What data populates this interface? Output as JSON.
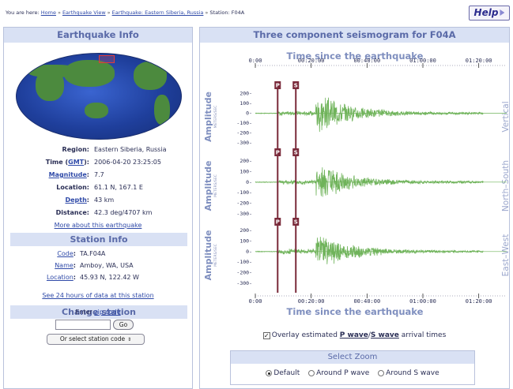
{
  "breadcrumb": {
    "prefix": "You are here:",
    "home": "Home",
    "earthquake_view": "Earthquake View",
    "event": "Earthquake: Eastern Siberia, Russia",
    "station": "Station: F04A"
  },
  "help": {
    "label": "Help"
  },
  "left": {
    "title": "Earthquake Info",
    "region_label": "Region:",
    "region_value": "Eastern Siberia, Russia",
    "time_label": "Time",
    "time_gmt": "GMT",
    "time_value": "2006-04-20 23:25:05",
    "magnitude_label": "Magnitude",
    "magnitude_value": "7.7",
    "location_label": "Location:",
    "location_value": "61.1 N, 167.1 E",
    "depth_label": "Depth",
    "depth_value": "43 km",
    "distance_label": "Distance:",
    "distance_value": "42.3 deg/4707 km",
    "more_link": "More about this earthquake",
    "station_title": "Station Info",
    "code_label": "Code",
    "code_value": "TA.F04A",
    "name_label": "Name",
    "name_value": "Amboy, WA, USA",
    "st_location_label": "Location",
    "st_location_value": "45.93 N, 122.42 W",
    "hours_link": "See 24 hours of data at this station",
    "change_title": "Change station",
    "zip_prefix": "Enter",
    "zip_link": "zip code",
    "zip_value": "",
    "go_label": "Go",
    "select_label": "Or select station code"
  },
  "right": {
    "title": "Three component seismogram for F04A",
    "axis_title_top": "Time since the earthquake",
    "axis_title_bottom": "Time since the earthquake",
    "amplitude_label": "Amplitude",
    "amplitude_unit": "METERS/SEC",
    "channels": [
      "Vertical",
      "North–South",
      "East–West"
    ],
    "overlay_checked": true,
    "overlay_pre": "Overlay estimated",
    "overlay_p": "P wave",
    "overlay_slash": "/",
    "overlay_s": "S wave",
    "overlay_post": "arrival times",
    "zoom_title": "Select Zoom",
    "zoom_options": [
      "Default",
      "Around P wave",
      "Around S wave"
    ],
    "zoom_selected": 0,
    "p_tag": "P",
    "s_tag": "S"
  },
  "chart_data": {
    "type": "line",
    "title": "Three component seismogram for F04A",
    "xlabel": "Time since the earthquake",
    "ylabel": "Amplitude",
    "x_ticks": [
      "0:00",
      "00:20:00",
      "00:40:00",
      "01:00:00",
      "01:20:00"
    ],
    "x_tick_seconds": [
      0,
      1200,
      2400,
      3600,
      4800
    ],
    "xlim_seconds": [
      0,
      5400
    ],
    "y_ticks": [
      200,
      100,
      0,
      -100,
      -200,
      -300
    ],
    "y_tick_labels": [
      "200-",
      "100-",
      "0-",
      "-100-",
      "-200-",
      "-300-"
    ],
    "ylim": [
      -330,
      260
    ],
    "arrivals_seconds": {
      "P": 480,
      "S": 870
    },
    "series": [
      {
        "name": "Vertical",
        "color": "#6fb35a",
        "onset_seconds": 1300,
        "peak_amplitude": 240
      },
      {
        "name": "North–South",
        "color": "#6fb35a",
        "onset_seconds": 1300,
        "peak_amplitude": 200
      },
      {
        "name": "East–West",
        "color": "#6fb35a",
        "onset_seconds": 1300,
        "peak_amplitude": 200
      }
    ]
  },
  "colors": {
    "panel_header_bg": "#d9e1f4",
    "panel_header_text": "#5a6aa8",
    "link": "#2f4aa8",
    "wave": "#6fb35a",
    "arrival_marker": "#7a2a3a"
  }
}
